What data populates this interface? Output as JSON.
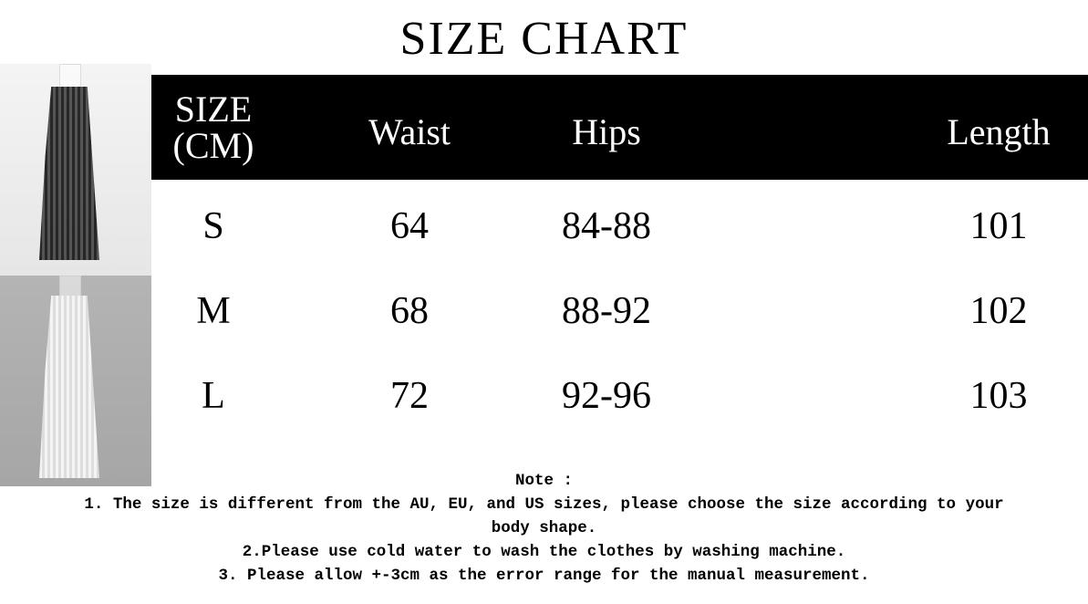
{
  "title": "SIZE CHART",
  "photos": [
    {
      "name": "black lace skirt",
      "background": "#eeeeee",
      "color": "#111111"
    },
    {
      "name": "white lace skirt",
      "background": "#aaaaaa",
      "color": "#f4f4f4"
    }
  ],
  "table": {
    "headers": [
      "SIZE",
      "(CM)",
      "Waist",
      "Hips",
      "Length"
    ],
    "rows": [
      {
        "size": "S",
        "waist": "64",
        "hips": "84-88",
        "length": "101"
      },
      {
        "size": "M",
        "waist": "68",
        "hips": "88-92",
        "length": "102"
      },
      {
        "size": "L",
        "waist": "72",
        "hips": "92-96",
        "length": "103"
      }
    ]
  },
  "notes": {
    "heading": "Note :",
    "lines": [
      "1. The size is different from the AU, EU, and US sizes, please choose the size according to your",
      "body shape.",
      "2.Please use cold water to wash the clothes by washing machine.",
      "3. Please allow +-3cm as the error range for the manual measurement."
    ]
  }
}
